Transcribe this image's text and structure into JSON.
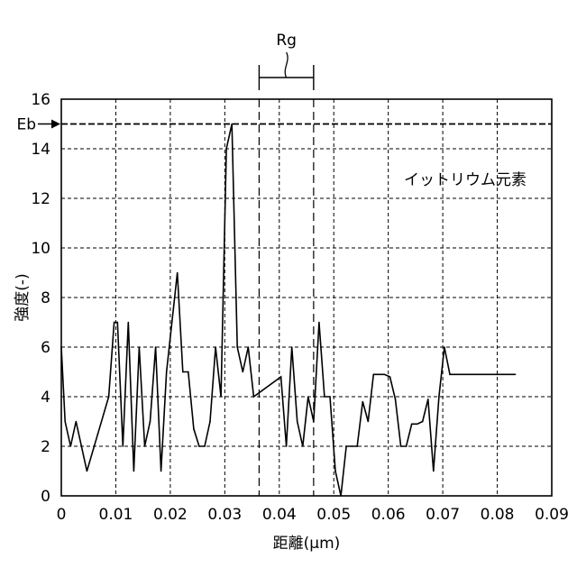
{
  "chart_data": {
    "type": "line",
    "title": "",
    "xlabel": "距離(μm)",
    "ylabel": "強度(-)",
    "xlim": [
      0,
      0.09
    ],
    "ylim": [
      0,
      16
    ],
    "grid": true,
    "x_ticks": [
      0,
      0.01,
      0.02,
      0.03,
      0.04,
      0.05,
      0.06,
      0.07,
      0.08,
      0.09
    ],
    "x_tick_labels": [
      "0",
      "0.01",
      "0.02",
      "0.03",
      "0.04",
      "0.05",
      "0.06",
      "0.07",
      "0.08",
      "0.09"
    ],
    "y_ticks": [
      0,
      2,
      4,
      6,
      8,
      10,
      12,
      14,
      16
    ],
    "y_tick_labels": [
      "0",
      "2",
      "4",
      "6",
      "8",
      "10",
      "12",
      "14",
      "16"
    ],
    "series": [
      {
        "name": "イットリウム元素",
        "x": [
          0,
          0.0007,
          0.0017,
          0.0027,
          0.0047,
          0.0067,
          0.0087,
          0.0097,
          0.0103,
          0.0113,
          0.0123,
          0.0133,
          0.0143,
          0.0153,
          0.0163,
          0.0173,
          0.0183,
          0.0193,
          0.0213,
          0.0223,
          0.0233,
          0.0243,
          0.0253,
          0.0263,
          0.0273,
          0.0283,
          0.0293,
          0.0303,
          0.0313,
          0.0323,
          0.0333,
          0.0343,
          0.0353,
          0.0403,
          0.0413,
          0.0423,
          0.0433,
          0.0443,
          0.0453,
          0.0463,
          0.0473,
          0.0483,
          0.0493,
          0.0503,
          0.0513,
          0.0523,
          0.0533,
          0.0543,
          0.0553,
          0.0563,
          0.0573,
          0.0583,
          0.0593,
          0.0603,
          0.0613,
          0.0623,
          0.0633,
          0.0643,
          0.0653,
          0.0663,
          0.0673,
          0.0683,
          0.0693,
          0.0703,
          0.0713,
          0.0723,
          0.0733,
          0.0743,
          0.0753,
          0.0763,
          0.0773,
          0.0783,
          0.0793,
          0.0803,
          0.0813,
          0.0823,
          0.0833
        ],
        "values": [
          6,
          3,
          2,
          3,
          1,
          2.5,
          4,
          7,
          7,
          2,
          7,
          1,
          6,
          2,
          3,
          6,
          1,
          5,
          9,
          5,
          5,
          2.7,
          2,
          2,
          3,
          6,
          4,
          14,
          15,
          6,
          5,
          6,
          4,
          4.8,
          2,
          6,
          3,
          2,
          4,
          3,
          7,
          4,
          4,
          1,
          0,
          2,
          2,
          2,
          3.8,
          3,
          4.9,
          4.9,
          4.9,
          4.8,
          3.9,
          2,
          2,
          2.9,
          2.9,
          3,
          3.9,
          1,
          4,
          6,
          4.9,
          4.9,
          4.9,
          4.9,
          4.9,
          4.9,
          4.9,
          4.9,
          4.9,
          4.9,
          4.9,
          4.9,
          4.9
        ]
      }
    ],
    "reference_line": {
      "label": "Eb",
      "y": 15
    },
    "region_bracket": {
      "label": "Rg",
      "x_start": 0.0363,
      "x_end": 0.0463
    },
    "annotation": "イットリウム元素"
  }
}
